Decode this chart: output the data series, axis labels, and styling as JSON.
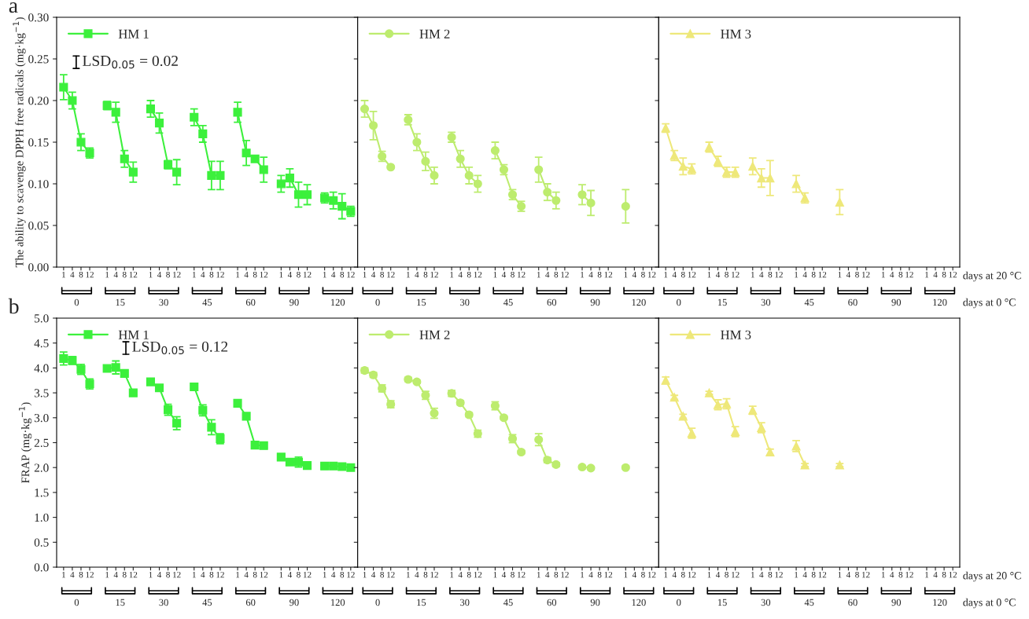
{
  "chart_data": [
    {
      "type": "line",
      "title": "a",
      "ylabel": "The ability to scavenge DPPH free radicals (mg·kg$^{−1}$)",
      "categories": [
        "1",
        "4",
        "8",
        "12",
        null,
        "1",
        "4",
        "8",
        "12",
        null,
        "1",
        "4",
        "8",
        "12",
        null,
        "1",
        "4",
        "8",
        "12",
        null,
        "1",
        "4",
        "8",
        "12",
        null,
        "1",
        "4",
        "8",
        "12",
        null,
        "1",
        "4",
        "8",
        "12"
      ],
      "series": [
        {
          "name": "HM 1",
          "color": "#3cf03c",
          "values": [
            0.216,
            0.2,
            0.15,
            0.137,
            null,
            0.194,
            0.186,
            0.13,
            0.114,
            null,
            0.19,
            0.173,
            0.123,
            0.114,
            null,
            0.18,
            0.16,
            0.11,
            0.11,
            null,
            0.186,
            0.137,
            0.13,
            0.117,
            null,
            0.1,
            0.107,
            0.087,
            0.087,
            null,
            0.083,
            0.08,
            0.073,
            0.067
          ],
          "errors": [
            0.015,
            0.01,
            0.01,
            0.006,
            null,
            0.005,
            0.012,
            0.01,
            0.012,
            null,
            0.01,
            0.012,
            0.005,
            0.015,
            null,
            0.01,
            0.01,
            0.017,
            0.017,
            null,
            0.012,
            0.015,
            0.003,
            0.015,
            null,
            0.01,
            0.011,
            0.015,
            0.012,
            null,
            0.006,
            0.01,
            0.015,
            0.006
          ]
        }
      ],
      "ylim": [
        0,
        0.3
      ],
      "yticks": [
        {
          "value": 0,
          "label": "0.00"
        },
        {
          "value": 0.05,
          "label": "0.05"
        },
        {
          "value": 0.1,
          "label": "0.10"
        },
        {
          "value": 0.15,
          "label": "0.15"
        },
        {
          "value": 0.2,
          "label": "0.20"
        },
        {
          "value": 0.25,
          "label": "0.25"
        },
        {
          "value": 0.3,
          "label": "0.30"
        }
      ],
      "marker": "square",
      "line_style": "solid",
      "legend": "top left",
      "annotations": [
        "0",
        "15",
        "30",
        "45",
        "60",
        "90",
        "120",
        "LSD$_{0.05}$ = 0.02"
      ]
    },
    {
      "type": "line",
      "categories": [
        "1",
        "4",
        "8",
        "12",
        null,
        "1",
        "4",
        "8",
        "12",
        null,
        "1",
        "4",
        "8",
        "12",
        null,
        "1",
        "4",
        "8",
        "12",
        null,
        "1",
        "4",
        "8",
        "12",
        null,
        "1",
        "4",
        "8",
        "12",
        null,
        "1",
        "4",
        "8",
        "12"
      ],
      "series": [
        {
          "name": "HM 2",
          "color": "#bdec6e",
          "values": [
            0.19,
            0.17,
            0.133,
            0.12,
            null,
            0.177,
            0.15,
            0.127,
            0.11,
            null,
            0.156,
            0.13,
            0.11,
            0.1,
            null,
            0.14,
            0.117,
            0.087,
            0.073,
            null,
            0.117,
            0.09,
            0.08,
            null,
            null,
            0.087,
            0.077,
            null,
            null,
            null,
            0.073,
            null,
            null,
            null
          ],
          "errors": [
            0.01,
            0.017,
            0.006,
            null,
            null,
            0.006,
            0.01,
            0.011,
            0.01,
            null,
            0.006,
            0.01,
            0.01,
            0.01,
            null,
            0.01,
            0.006,
            0.006,
            0.006,
            null,
            0.015,
            0.01,
            0.01,
            null,
            null,
            0.012,
            0.015,
            null,
            null,
            null,
            0.02,
            null,
            null,
            null
          ]
        }
      ],
      "ylim": [
        0,
        0.3
      ],
      "yticks": [
        {
          "value": 0,
          "label": null
        },
        {
          "value": 0.05,
          "label": null
        },
        {
          "value": 0.1,
          "label": null
        },
        {
          "value": 0.15,
          "label": null
        },
        {
          "value": 0.2,
          "label": null
        },
        {
          "value": 0.25,
          "label": null
        },
        {
          "value": 0.3,
          "label": null
        }
      ],
      "marker": "circle",
      "line_style": "solid",
      "legend": "top left",
      "tick_labels": "x",
      "annotations": [
        "0",
        "15",
        "30",
        "45",
        "60",
        "90",
        "120"
      ]
    },
    {
      "type": "line",
      "categories": [
        "1",
        "4",
        "8",
        "12",
        null,
        "1",
        "4",
        "8",
        "12",
        null,
        "1",
        "4",
        "8",
        "12",
        null,
        "1",
        "4",
        "8",
        "12",
        null,
        "1",
        "4",
        "8",
        "12",
        null,
        "1",
        "4",
        "8",
        "12",
        null,
        "1",
        "4",
        "8",
        "12"
      ],
      "series": [
        {
          "name": "HM 3",
          "color": "#eee87a",
          "values": [
            0.167,
            0.134,
            0.121,
            0.118,
            null,
            0.144,
            0.127,
            0.114,
            0.114,
            null,
            0.121,
            0.107,
            0.107,
            null,
            null,
            0.1,
            0.083,
            null,
            null,
            null,
            0.078,
            null,
            null,
            null,
            null,
            null,
            null,
            null,
            null,
            null,
            null,
            null,
            null,
            null
          ],
          "errors": [
            0.005,
            0.006,
            0.01,
            0.006,
            null,
            0.006,
            0.006,
            0.006,
            0.006,
            null,
            0.01,
            0.011,
            0.021,
            null,
            null,
            0.01,
            0.006,
            null,
            null,
            null,
            0.015,
            null,
            null,
            null,
            null,
            null,
            null,
            null,
            null,
            null,
            null,
            null,
            null,
            null
          ]
        }
      ],
      "ylim": [
        0,
        0.3
      ],
      "yticks": [
        {
          "value": 0,
          "label": null
        },
        {
          "value": 0.05,
          "label": null
        },
        {
          "value": 0.1,
          "label": null
        },
        {
          "value": 0.15,
          "label": null
        },
        {
          "value": 0.2,
          "label": null
        },
        {
          "value": 0.25,
          "label": null
        },
        {
          "value": 0.3,
          "label": null
        }
      ],
      "marker": "triangle",
      "line_style": "solid",
      "legend": "top left",
      "tick_labels": "x",
      "annotations": [
        "0",
        "15",
        "30",
        "45",
        "60",
        "90",
        "120",
        "days at 20 °C",
        "days at 0 °C"
      ]
    },
    {
      "type": "line",
      "title": "b",
      "ylabel": "FRAP (mg·kg$^{−1}$)",
      "categories": [
        "1",
        "4",
        "8",
        "12",
        null,
        "1",
        "4",
        "8",
        "12",
        null,
        "1",
        "4",
        "8",
        "12",
        null,
        "1",
        "4",
        "8",
        "12",
        null,
        "1",
        "4",
        "8",
        "12",
        null,
        "1",
        "4",
        "8",
        "12",
        null,
        "1",
        "4",
        "8",
        "12"
      ],
      "series": [
        {
          "name": "HM 1",
          "color": "#3cf03c",
          "values": [
            4.19,
            4.15,
            3.97,
            3.68,
            null,
            3.99,
            4.01,
            3.89,
            3.5,
            null,
            3.72,
            3.6,
            3.16,
            2.89,
            null,
            3.62,
            3.15,
            2.81,
            2.58,
            null,
            3.29,
            3.03,
            2.45,
            2.44,
            null,
            2.21,
            2.11,
            2.11,
            2.04,
            null,
            2.03,
            2.03,
            2.02,
            2.0
          ],
          "errors": [
            0.13,
            0.08,
            0.1,
            0.1,
            null,
            0.03,
            0.13,
            0.03,
            0.04,
            null,
            0.03,
            0.03,
            0.11,
            0.13,
            null,
            0.03,
            0.11,
            0.15,
            0.1,
            null,
            0.04,
            0.03,
            0.05,
            0.04,
            null,
            0.04,
            0.03,
            0.1,
            0.03,
            null,
            0.03,
            0.03,
            0.03,
            0.03
          ]
        }
      ],
      "ylim": [
        0,
        5
      ],
      "yticks": [
        {
          "value": 0,
          "label": "0.0"
        },
        {
          "value": 0.5,
          "label": "0.5"
        },
        {
          "value": 1,
          "label": "1.0"
        },
        {
          "value": 1.5,
          "label": "1.5"
        },
        {
          "value": 2,
          "label": "2.0"
        },
        {
          "value": 2.5,
          "label": "2.5"
        },
        {
          "value": 3,
          "label": "3.0"
        },
        {
          "value": 3.5,
          "label": "3.5"
        },
        {
          "value": 4,
          "label": "4.0"
        },
        {
          "value": 4.5,
          "label": "4.5"
        },
        {
          "value": 5,
          "label": "5.0"
        }
      ],
      "marker": "square",
      "line_style": "solid",
      "legend": "top left",
      "annotations": [
        "0",
        "15",
        "30",
        "45",
        "60",
        "90",
        "120",
        "LSD$_{0.05}$ = 0.12"
      ]
    },
    {
      "type": "line",
      "categories": [
        "1",
        "4",
        "8",
        "12",
        null,
        "1",
        "4",
        "8",
        "12",
        null,
        "1",
        "4",
        "8",
        "12",
        null,
        "1",
        "4",
        "8",
        "12",
        null,
        "1",
        "4",
        "8",
        "12",
        null,
        "1",
        "4",
        "8",
        "12",
        null,
        "1",
        "4",
        "8",
        "12"
      ],
      "series": [
        {
          "name": "HM 2",
          "color": "#bdec6e",
          "values": [
            3.95,
            3.86,
            3.59,
            3.27,
            null,
            3.77,
            3.72,
            3.45,
            3.09,
            null,
            3.49,
            3.3,
            3.06,
            2.68,
            null,
            3.24,
            3.0,
            2.58,
            2.31,
            null,
            2.56,
            2.15,
            2.06,
            null,
            null,
            2.01,
            1.99,
            null,
            null,
            null,
            2.0,
            null,
            null,
            null
          ],
          "errors": [
            0.05,
            0.05,
            0.07,
            0.07,
            null,
            0.04,
            0.03,
            0.08,
            0.1,
            null,
            0.06,
            0.04,
            0.04,
            0.07,
            null,
            0.08,
            0.03,
            0.08,
            0.03,
            null,
            0.12,
            0.05,
            0.04,
            null,
            null,
            0.03,
            0.03,
            null,
            null,
            null,
            0.03,
            null,
            null,
            null
          ]
        }
      ],
      "ylim": [
        0,
        5
      ],
      "yticks": [
        {
          "value": 0,
          "label": null
        },
        {
          "value": 0.5,
          "label": null
        },
        {
          "value": 1,
          "label": null
        },
        {
          "value": 1.5,
          "label": null
        },
        {
          "value": 2,
          "label": null
        },
        {
          "value": 2.5,
          "label": null
        },
        {
          "value": 3,
          "label": null
        },
        {
          "value": 3.5,
          "label": null
        },
        {
          "value": 4,
          "label": null
        },
        {
          "value": 4.5,
          "label": null
        },
        {
          "value": 5,
          "label": null
        }
      ],
      "marker": "circle",
      "line_style": "solid",
      "legend": "top left",
      "tick_labels": "x",
      "annotations": [
        "0",
        "15",
        "30",
        "45",
        "60",
        "90",
        "120"
      ]
    },
    {
      "type": "line",
      "categories": [
        "1",
        "4",
        "8",
        "12",
        null,
        "1",
        "4",
        "8",
        "12",
        null,
        "1",
        "4",
        "8",
        "12",
        null,
        "1",
        "4",
        "8",
        "12",
        null,
        "1",
        "4",
        "8",
        "12",
        null,
        "1",
        "4",
        "8",
        "12",
        null,
        "1",
        "4",
        "8",
        "12"
      ],
      "series": [
        {
          "name": "HM 3",
          "color": "#eee87a",
          "values": [
            3.75,
            3.41,
            3.03,
            2.69,
            null,
            3.5,
            3.26,
            3.28,
            2.72,
            null,
            3.15,
            2.8,
            2.31,
            null,
            null,
            2.43,
            2.05,
            null,
            null,
            null,
            2.05,
            null,
            null,
            null,
            null,
            null,
            null,
            null,
            null,
            null,
            null,
            null,
            null,
            null
          ],
          "errors": [
            0.07,
            0.04,
            0.04,
            0.1,
            null,
            0.03,
            0.1,
            0.1,
            0.1,
            null,
            0.08,
            0.1,
            0.06,
            null,
            null,
            0.11,
            0.03,
            null,
            null,
            null,
            0.03,
            null,
            null,
            null,
            null,
            null,
            null,
            null,
            null,
            null,
            null,
            null,
            null,
            null
          ]
        }
      ],
      "ylim": [
        0,
        5
      ],
      "yticks": [
        {
          "value": 0,
          "label": null
        },
        {
          "value": 0.5,
          "label": null
        },
        {
          "value": 1,
          "label": null
        },
        {
          "value": 1.5,
          "label": null
        },
        {
          "value": 2,
          "label": null
        },
        {
          "value": 2.5,
          "label": null
        },
        {
          "value": 3,
          "label": null
        },
        {
          "value": 3.5,
          "label": null
        },
        {
          "value": 4,
          "label": null
        },
        {
          "value": 4.5,
          "label": null
        },
        {
          "value": 5,
          "label": null
        }
      ],
      "marker": "triangle",
      "line_style": "solid",
      "legend": "top left",
      "tick_labels": "x",
      "annotations": [
        "0",
        "15",
        "30",
        "45",
        "60",
        "90",
        "120",
        "days at 20 °C",
        "days at 0 °C"
      ]
    }
  ]
}
